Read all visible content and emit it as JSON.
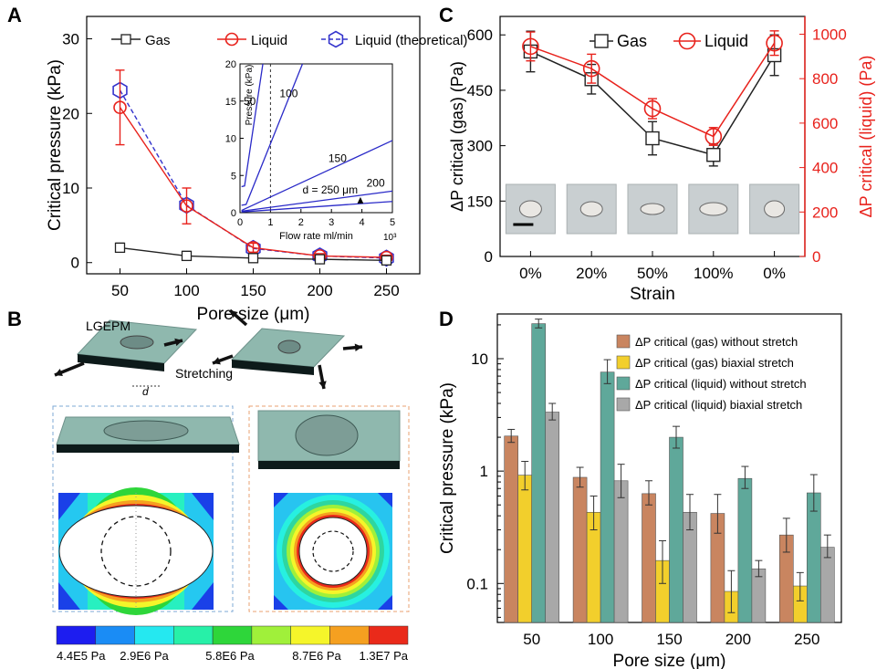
{
  "panels": {
    "A": "A",
    "B": "B",
    "C": "C",
    "D": "D"
  },
  "colors": {
    "gas": "#222222",
    "liquid": "#e8221c",
    "theory": "#3333cc",
    "inset": "#2a2ac8",
    "d_gas_without": "#c98560",
    "d_gas_biaxial": "#f2cf2c",
    "d_liq_without": "#5fa89a",
    "d_liq_biaxial": "#a8a8a8"
  },
  "chart_data": [
    {
      "id": "A",
      "type": "line",
      "xlabel": "Pore size (μm)",
      "ylabel": "Critical pressure (kPa)",
      "x": [
        50,
        100,
        150,
        200,
        250
      ],
      "xlim": [
        25,
        275
      ],
      "ylim": [
        -1.5,
        33
      ],
      "yticks": [
        0,
        10,
        20,
        30
      ],
      "series": [
        {
          "name": "Gas",
          "values": [
            2.0,
            0.9,
            0.6,
            0.45,
            0.3
          ],
          "err": [
            0.6,
            0.6,
            0.4,
            0.3,
            0.3
          ]
        },
        {
          "name": "Liquid",
          "values": [
            20.8,
            7.6,
            2.0,
            0.9,
            0.7
          ],
          "err": [
            5.0,
            2.4,
            0.6,
            0.3,
            0.3
          ]
        },
        {
          "name": "Liquid (theoretical)",
          "values": [
            23.1,
            7.7,
            1.9,
            0.9,
            0.6
          ]
        }
      ],
      "inset": {
        "xlabel": "Flow rate ml/min",
        "ylabel": "Pressure (kPa)",
        "xmult": "10³",
        "xlim": [
          0,
          5
        ],
        "ylim": [
          0,
          20
        ],
        "xticks": [
          0,
          1,
          2,
          3,
          4,
          5
        ],
        "yticks": [
          0,
          5,
          10,
          15,
          20
        ],
        "curve_labels": [
          "50",
          "100",
          "150",
          "200"
        ],
        "d_label": "d = 250 μm"
      }
    },
    {
      "id": "C",
      "type": "line",
      "xlabel": "Strain",
      "ylabel_left": "ΔP critical (gas) (Pa)",
      "ylabel_right": "ΔP critical (liquid) (Pa)",
      "categories": [
        "0%",
        "20%",
        "50%",
        "100%",
        "0%"
      ],
      "ylim_left": [
        0,
        650
      ],
      "yticks_left": [
        0,
        150,
        300,
        450,
        600
      ],
      "ylim_right": [
        0,
        1080
      ],
      "yticks_right": [
        0,
        200,
        400,
        600,
        800,
        1000
      ],
      "series": [
        {
          "name": "Gas",
          "axis": "left",
          "values": [
            555,
            480,
            320,
            275,
            545
          ],
          "err": [
            55,
            40,
            45,
            30,
            55
          ]
        },
        {
          "name": "Liquid",
          "axis": "right",
          "values": [
            945,
            845,
            665,
            540,
            960
          ],
          "err": [
            65,
            65,
            45,
            40,
            55
          ]
        }
      ]
    },
    {
      "id": "D",
      "type": "bar",
      "xlabel": "Pore size (μm)",
      "ylabel": "Critical pressure (kPa)",
      "yscale": "log",
      "ylim": [
        0.045,
        25
      ],
      "yticks": [
        "0.1",
        "1",
        "10"
      ],
      "categories": [
        "50",
        "100",
        "150",
        "200",
        "250"
      ],
      "series": [
        {
          "name": "ΔP critical (gas) without stretch",
          "values": [
            2.05,
            0.88,
            0.63,
            0.42,
            0.27
          ],
          "err_hi": [
            2.35,
            1.08,
            0.82,
            0.62,
            0.38
          ],
          "err_lo": [
            1.8,
            0.72,
            0.5,
            0.28,
            0.19
          ]
        },
        {
          "name": "ΔP critical (gas) biaxial stretch",
          "values": [
            0.92,
            0.43,
            0.16,
            0.085,
            0.095
          ],
          "err_hi": [
            1.22,
            0.6,
            0.24,
            0.13,
            0.125
          ],
          "err_lo": [
            0.68,
            0.3,
            0.1,
            0.055,
            0.07
          ]
        },
        {
          "name": "ΔP critical (liquid) without stretch",
          "values": [
            20.5,
            7.6,
            2.0,
            0.86,
            0.64
          ],
          "err_hi": [
            22.5,
            9.8,
            2.5,
            1.1,
            0.93
          ],
          "err_lo": [
            18.8,
            6.0,
            1.6,
            0.7,
            0.44
          ]
        },
        {
          "name": "ΔP critical (liquid) biaxial stretch",
          "values": [
            3.35,
            0.82,
            0.43,
            0.135,
            0.21
          ],
          "err_hi": [
            4.0,
            1.15,
            0.62,
            0.16,
            0.27
          ],
          "err_lo": [
            2.85,
            0.58,
            0.3,
            0.115,
            0.17
          ]
        }
      ]
    }
  ],
  "panelB": {
    "label_lgepm": "LGEPM",
    "label_stretching": "Stretching",
    "label_d": "d",
    "colorbar_labels": [
      "4.4E5 Pa",
      "2.9E6 Pa",
      "5.8E6 Pa",
      "8.7E6 Pa",
      "1.3E7 Pa"
    ],
    "colorbar_colors": [
      "#1d1df0",
      "#1a8cf5",
      "#25e8f0",
      "#27f0a8",
      "#2ed63a",
      "#a0f03a",
      "#f5f52a",
      "#f5a020",
      "#ea2a1a"
    ]
  }
}
